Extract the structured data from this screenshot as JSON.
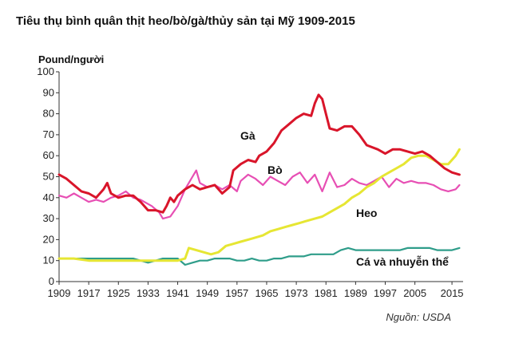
{
  "chart_data": {
    "type": "line",
    "title": "Tiêu thụ bình quân thịt heo/bò/gà/thủy sản tại Mỹ 1909-2015",
    "ylabel": "Pound/người",
    "source": "Nguồn: USDA",
    "xlim": [
      1909,
      2018
    ],
    "ylim": [
      0,
      100
    ],
    "x_ticks": [
      1909,
      1917,
      1925,
      1933,
      1941,
      1949,
      1957,
      1965,
      1973,
      1981,
      1989,
      1997,
      2005,
      2015
    ],
    "y_ticks": [
      0,
      10,
      20,
      30,
      40,
      50,
      60,
      70,
      80,
      90,
      100
    ],
    "grid": false,
    "series": [
      {
        "name": "Gà",
        "color": "#d9152a",
        "points": [
          [
            1909,
            51
          ],
          [
            1911,
            49
          ],
          [
            1913,
            46
          ],
          [
            1915,
            43
          ],
          [
            1917,
            42
          ],
          [
            1919,
            40
          ],
          [
            1921,
            44
          ],
          [
            1922,
            47
          ],
          [
            1923,
            42
          ],
          [
            1925,
            40
          ],
          [
            1927,
            41
          ],
          [
            1929,
            41
          ],
          [
            1931,
            38
          ],
          [
            1933,
            34
          ],
          [
            1935,
            34
          ],
          [
            1937,
            33
          ],
          [
            1938,
            36
          ],
          [
            1939,
            40
          ],
          [
            1940,
            38
          ],
          [
            1941,
            41
          ],
          [
            1943,
            44
          ],
          [
            1945,
            46
          ],
          [
            1947,
            44
          ],
          [
            1949,
            45
          ],
          [
            1951,
            46
          ],
          [
            1953,
            42
          ],
          [
            1955,
            45
          ],
          [
            1956,
            53
          ],
          [
            1958,
            56
          ],
          [
            1960,
            58
          ],
          [
            1962,
            57
          ],
          [
            1963,
            60
          ],
          [
            1965,
            62
          ],
          [
            1967,
            66
          ],
          [
            1969,
            72
          ],
          [
            1971,
            75
          ],
          [
            1973,
            78
          ],
          [
            1975,
            80
          ],
          [
            1977,
            79
          ],
          [
            1978,
            85
          ],
          [
            1979,
            89
          ],
          [
            1980,
            87
          ],
          [
            1981,
            80
          ],
          [
            1982,
            73
          ],
          [
            1984,
            72
          ],
          [
            1986,
            74
          ],
          [
            1988,
            74
          ],
          [
            1990,
            70
          ],
          [
            1992,
            65
          ],
          [
            1995,
            63
          ],
          [
            1997,
            61
          ],
          [
            1999,
            63
          ],
          [
            2001,
            63
          ],
          [
            2003,
            62
          ],
          [
            2005,
            61
          ],
          [
            2007,
            62
          ],
          [
            2009,
            60
          ],
          [
            2011,
            57
          ],
          [
            2013,
            54
          ],
          [
            2015,
            52
          ],
          [
            2017,
            51
          ]
        ]
      },
      {
        "name": "Bò",
        "color": "#e74fb4",
        "points": [
          [
            1909,
            41
          ],
          [
            1911,
            40
          ],
          [
            1913,
            42
          ],
          [
            1915,
            40
          ],
          [
            1917,
            38
          ],
          [
            1919,
            39
          ],
          [
            1921,
            38
          ],
          [
            1923,
            40
          ],
          [
            1925,
            41
          ],
          [
            1927,
            43
          ],
          [
            1929,
            40
          ],
          [
            1931,
            39
          ],
          [
            1933,
            37
          ],
          [
            1934,
            36
          ],
          [
            1936,
            33
          ],
          [
            1937,
            30
          ],
          [
            1939,
            31
          ],
          [
            1941,
            36
          ],
          [
            1943,
            44
          ],
          [
            1945,
            50
          ],
          [
            1946,
            53
          ],
          [
            1947,
            47
          ],
          [
            1949,
            45
          ],
          [
            1951,
            46
          ],
          [
            1953,
            44
          ],
          [
            1955,
            46
          ],
          [
            1957,
            43
          ],
          [
            1958,
            48
          ],
          [
            1960,
            51
          ],
          [
            1962,
            49
          ],
          [
            1964,
            46
          ],
          [
            1966,
            50
          ],
          [
            1968,
            48
          ],
          [
            1970,
            46
          ],
          [
            1972,
            50
          ],
          [
            1974,
            52
          ],
          [
            1976,
            47
          ],
          [
            1978,
            51
          ],
          [
            1980,
            43
          ],
          [
            1982,
            52
          ],
          [
            1984,
            45
          ],
          [
            1986,
            46
          ],
          [
            1988,
            49
          ],
          [
            1990,
            47
          ],
          [
            1992,
            46
          ],
          [
            1994,
            48
          ],
          [
            1996,
            50
          ],
          [
            1998,
            45
          ],
          [
            2000,
            49
          ],
          [
            2002,
            47
          ],
          [
            2004,
            48
          ],
          [
            2006,
            47
          ],
          [
            2008,
            47
          ],
          [
            2010,
            46
          ],
          [
            2012,
            44
          ],
          [
            2014,
            43
          ],
          [
            2016,
            44
          ],
          [
            2017,
            46
          ]
        ]
      },
      {
        "name": "Heo",
        "color": "#e6e633",
        "points": [
          [
            1909,
            11
          ],
          [
            1913,
            11
          ],
          [
            1917,
            10
          ],
          [
            1921,
            10
          ],
          [
            1925,
            10
          ],
          [
            1929,
            10
          ],
          [
            1933,
            10
          ],
          [
            1937,
            10
          ],
          [
            1941,
            10
          ],
          [
            1943,
            11
          ],
          [
            1944,
            16
          ],
          [
            1946,
            15
          ],
          [
            1948,
            14
          ],
          [
            1950,
            13
          ],
          [
            1952,
            14
          ],
          [
            1954,
            17
          ],
          [
            1956,
            18
          ],
          [
            1958,
            19
          ],
          [
            1960,
            20
          ],
          [
            1962,
            21
          ],
          [
            1964,
            22
          ],
          [
            1966,
            24
          ],
          [
            1968,
            25
          ],
          [
            1970,
            26
          ],
          [
            1972,
            27
          ],
          [
            1974,
            28
          ],
          [
            1976,
            29
          ],
          [
            1978,
            30
          ],
          [
            1980,
            31
          ],
          [
            1982,
            33
          ],
          [
            1984,
            35
          ],
          [
            1986,
            37
          ],
          [
            1988,
            40
          ],
          [
            1990,
            42
          ],
          [
            1992,
            45
          ],
          [
            1994,
            47
          ],
          [
            1996,
            50
          ],
          [
            1998,
            52
          ],
          [
            2000,
            54
          ],
          [
            2002,
            56
          ],
          [
            2004,
            59
          ],
          [
            2006,
            60
          ],
          [
            2008,
            60
          ],
          [
            2010,
            58
          ],
          [
            2012,
            56
          ],
          [
            2014,
            56
          ],
          [
            2016,
            60
          ],
          [
            2017,
            63
          ]
        ]
      },
      {
        "name": "Cá và nhuyễn thể",
        "color": "#2f9d8a",
        "points": [
          [
            1909,
            11
          ],
          [
            1913,
            11
          ],
          [
            1917,
            11
          ],
          [
            1921,
            11
          ],
          [
            1925,
            11
          ],
          [
            1929,
            11
          ],
          [
            1933,
            9
          ],
          [
            1935,
            10
          ],
          [
            1937,
            11
          ],
          [
            1939,
            11
          ],
          [
            1941,
            11
          ],
          [
            1943,
            8
          ],
          [
            1945,
            9
          ],
          [
            1947,
            10
          ],
          [
            1949,
            10
          ],
          [
            1951,
            11
          ],
          [
            1953,
            11
          ],
          [
            1955,
            11
          ],
          [
            1957,
            10
          ],
          [
            1959,
            10
          ],
          [
            1961,
            11
          ],
          [
            1963,
            10
          ],
          [
            1965,
            10
          ],
          [
            1967,
            11
          ],
          [
            1969,
            11
          ],
          [
            1971,
            12
          ],
          [
            1973,
            12
          ],
          [
            1975,
            12
          ],
          [
            1977,
            13
          ],
          [
            1979,
            13
          ],
          [
            1981,
            13
          ],
          [
            1983,
            13
          ],
          [
            1985,
            15
          ],
          [
            1987,
            16
          ],
          [
            1989,
            15
          ],
          [
            1991,
            15
          ],
          [
            1993,
            15
          ],
          [
            1995,
            15
          ],
          [
            1997,
            15
          ],
          [
            1999,
            15
          ],
          [
            2001,
            15
          ],
          [
            2003,
            16
          ],
          [
            2005,
            16
          ],
          [
            2007,
            16
          ],
          [
            2009,
            16
          ],
          [
            2011,
            15
          ],
          [
            2013,
            15
          ],
          [
            2015,
            15
          ],
          [
            2017,
            16
          ]
        ]
      }
    ]
  },
  "labels": {
    "chicken": "Gà",
    "beef": "Bò",
    "pork": "Heo",
    "fish": "Cá và nhuyễn thể"
  }
}
